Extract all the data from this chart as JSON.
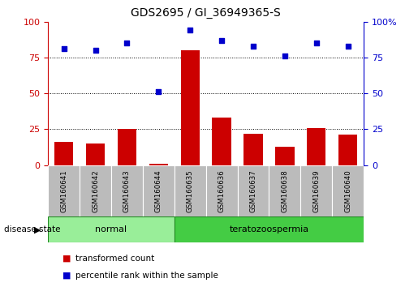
{
  "title": "GDS2695 / GI_36949365-S",
  "samples": [
    "GSM160641",
    "GSM160642",
    "GSM160643",
    "GSM160644",
    "GSM160635",
    "GSM160636",
    "GSM160637",
    "GSM160638",
    "GSM160639",
    "GSM160640"
  ],
  "transformed_count": [
    16,
    15,
    25,
    1,
    80,
    33,
    22,
    13,
    26,
    21
  ],
  "percentile_rank": [
    81,
    80,
    85,
    51,
    94,
    87,
    83,
    76,
    85,
    83
  ],
  "bar_color": "#cc0000",
  "dot_color": "#0000cc",
  "ylim": [
    0,
    100
  ],
  "yticks": [
    0,
    25,
    50,
    75,
    100
  ],
  "gridlines": [
    25,
    50,
    75
  ],
  "groups": [
    {
      "label": "normal",
      "start": 0,
      "end": 4,
      "color": "#99ee99"
    },
    {
      "label": "teratozoospermia",
      "start": 4,
      "end": 10,
      "color": "#44cc44"
    }
  ],
  "group_label_prefix": "disease state",
  "legend_bar_label": "transformed count",
  "legend_dot_label": "percentile rank within the sample",
  "left_axis_color": "#cc0000",
  "right_axis_color": "#0000cc",
  "label_area_color": "#bbbbbb",
  "group_border_color": "#228822",
  "right_tick_labels": [
    "0",
    "25",
    "50",
    "75",
    "100%"
  ]
}
